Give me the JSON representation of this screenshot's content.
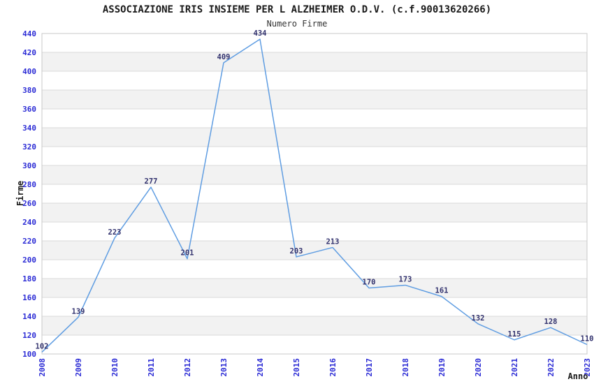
{
  "chart_data": {
    "type": "line",
    "title": "ASSOCIAZIONE IRIS INSIEME PER L ALZHEIMER O.D.V. (c.f.90013620266)",
    "subtitle": "Numero Firme",
    "xlabel": "Anno",
    "ylabel": "Firme",
    "x": [
      "2008",
      "2009",
      "2010",
      "2011",
      "2012",
      "2013",
      "2014",
      "2015",
      "2016",
      "2017",
      "2018",
      "2019",
      "2020",
      "2021",
      "2022",
      "2023"
    ],
    "values": [
      102,
      139,
      223,
      277,
      201,
      409,
      434,
      203,
      213,
      170,
      173,
      161,
      132,
      115,
      128,
      110
    ],
    "ylim": [
      100,
      440
    ],
    "ytick_step": 20,
    "grid": "horizontal-alternating-bands",
    "legend": "none",
    "point_labels_shown": true,
    "x_tick_rotation_deg": 90,
    "colors": {
      "line": "#5f9de2",
      "tick_label": "#2b2bd5",
      "data_label": "#32326e",
      "band_gray": "#f2f2f2",
      "band_white": "#ffffff",
      "gridline": "#d9d9d9",
      "frame": "#c8c8c8",
      "title_text": "#1a1a1a"
    }
  }
}
